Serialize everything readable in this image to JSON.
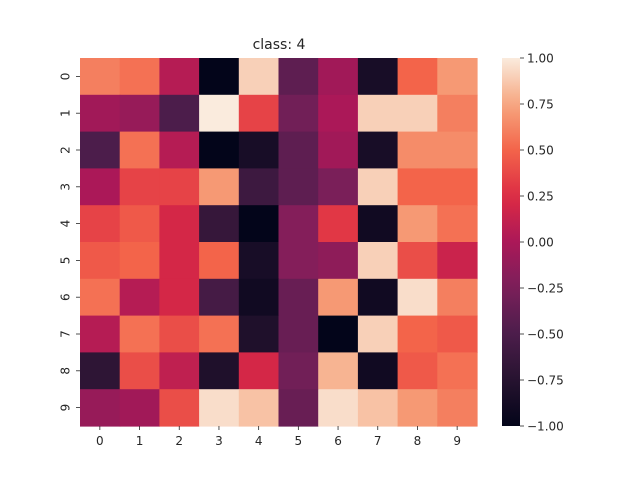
{
  "chart_data": {
    "type": "heatmap",
    "title": "class: 4",
    "xlabel": "",
    "ylabel": "",
    "x_categories": [
      "0",
      "1",
      "2",
      "3",
      "4",
      "5",
      "6",
      "7",
      "8",
      "9"
    ],
    "y_categories": [
      "0",
      "1",
      "2",
      "3",
      "4",
      "5",
      "6",
      "7",
      "8",
      "9"
    ],
    "values": [
      [
        0.6,
        0.55,
        0.05,
        -1.0,
        0.9,
        -0.4,
        -0.05,
        -0.85,
        0.5,
        0.7
      ],
      [
        -0.05,
        -0.1,
        -0.5,
        1.0,
        0.35,
        -0.3,
        0.0,
        0.9,
        0.9,
        0.6
      ],
      [
        -0.5,
        0.55,
        0.05,
        -1.0,
        -0.85,
        -0.4,
        -0.05,
        -0.85,
        0.65,
        0.65
      ],
      [
        0.0,
        0.35,
        0.35,
        0.7,
        -0.6,
        -0.4,
        -0.25,
        0.9,
        0.5,
        0.5
      ],
      [
        0.35,
        0.45,
        0.2,
        -0.65,
        -1.0,
        -0.2,
        0.3,
        -0.9,
        0.7,
        0.55
      ],
      [
        0.45,
        0.5,
        0.2,
        0.5,
        -0.85,
        -0.2,
        -0.15,
        0.9,
        0.4,
        0.15
      ],
      [
        0.55,
        0.05,
        0.2,
        -0.55,
        -0.9,
        -0.35,
        0.7,
        -0.9,
        0.95,
        0.6
      ],
      [
        0.05,
        0.55,
        0.4,
        0.55,
        -0.8,
        -0.35,
        -1.0,
        0.9,
        0.5,
        0.45
      ],
      [
        -0.7,
        0.4,
        0.1,
        -0.8,
        0.2,
        -0.3,
        0.8,
        -0.9,
        0.45,
        0.55
      ],
      [
        -0.1,
        -0.05,
        0.4,
        0.95,
        0.85,
        -0.35,
        0.95,
        0.85,
        0.7,
        0.6
      ]
    ],
    "colorbar": {
      "range": [
        -1.0,
        1.0
      ],
      "ticks": [
        1.0,
        0.75,
        0.5,
        0.25,
        0.0,
        -0.25,
        -0.5,
        -0.75,
        -1.0
      ],
      "tick_labels": [
        "1.00",
        "0.75",
        "0.50",
        "0.25",
        "0.00",
        "−0.25",
        "−0.50",
        "−0.75",
        "−1.00"
      ],
      "colormap": "rocket"
    },
    "grid": false
  }
}
